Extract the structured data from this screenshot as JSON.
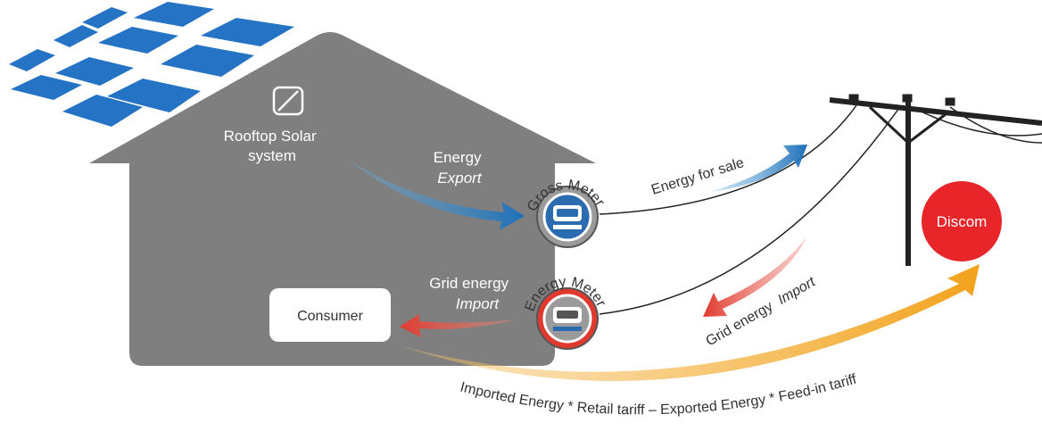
{
  "labels": {
    "solar": [
      "Rooftop Solar",
      "system"
    ],
    "export": [
      "Energy",
      "Export"
    ],
    "gross_meter": "Gross Meter",
    "sale": "Energy for sale",
    "discom": "Discom",
    "grid_import": [
      "Grid energy",
      "Import"
    ],
    "energy_meter": "Energy Meter",
    "consumer": "Consumer",
    "grid_import_rotated": [
      "Grid energy",
      "Import"
    ],
    "formula": "Imported Energy * Retail tariff – Exported Energy * Feed-in tariff"
  }
}
